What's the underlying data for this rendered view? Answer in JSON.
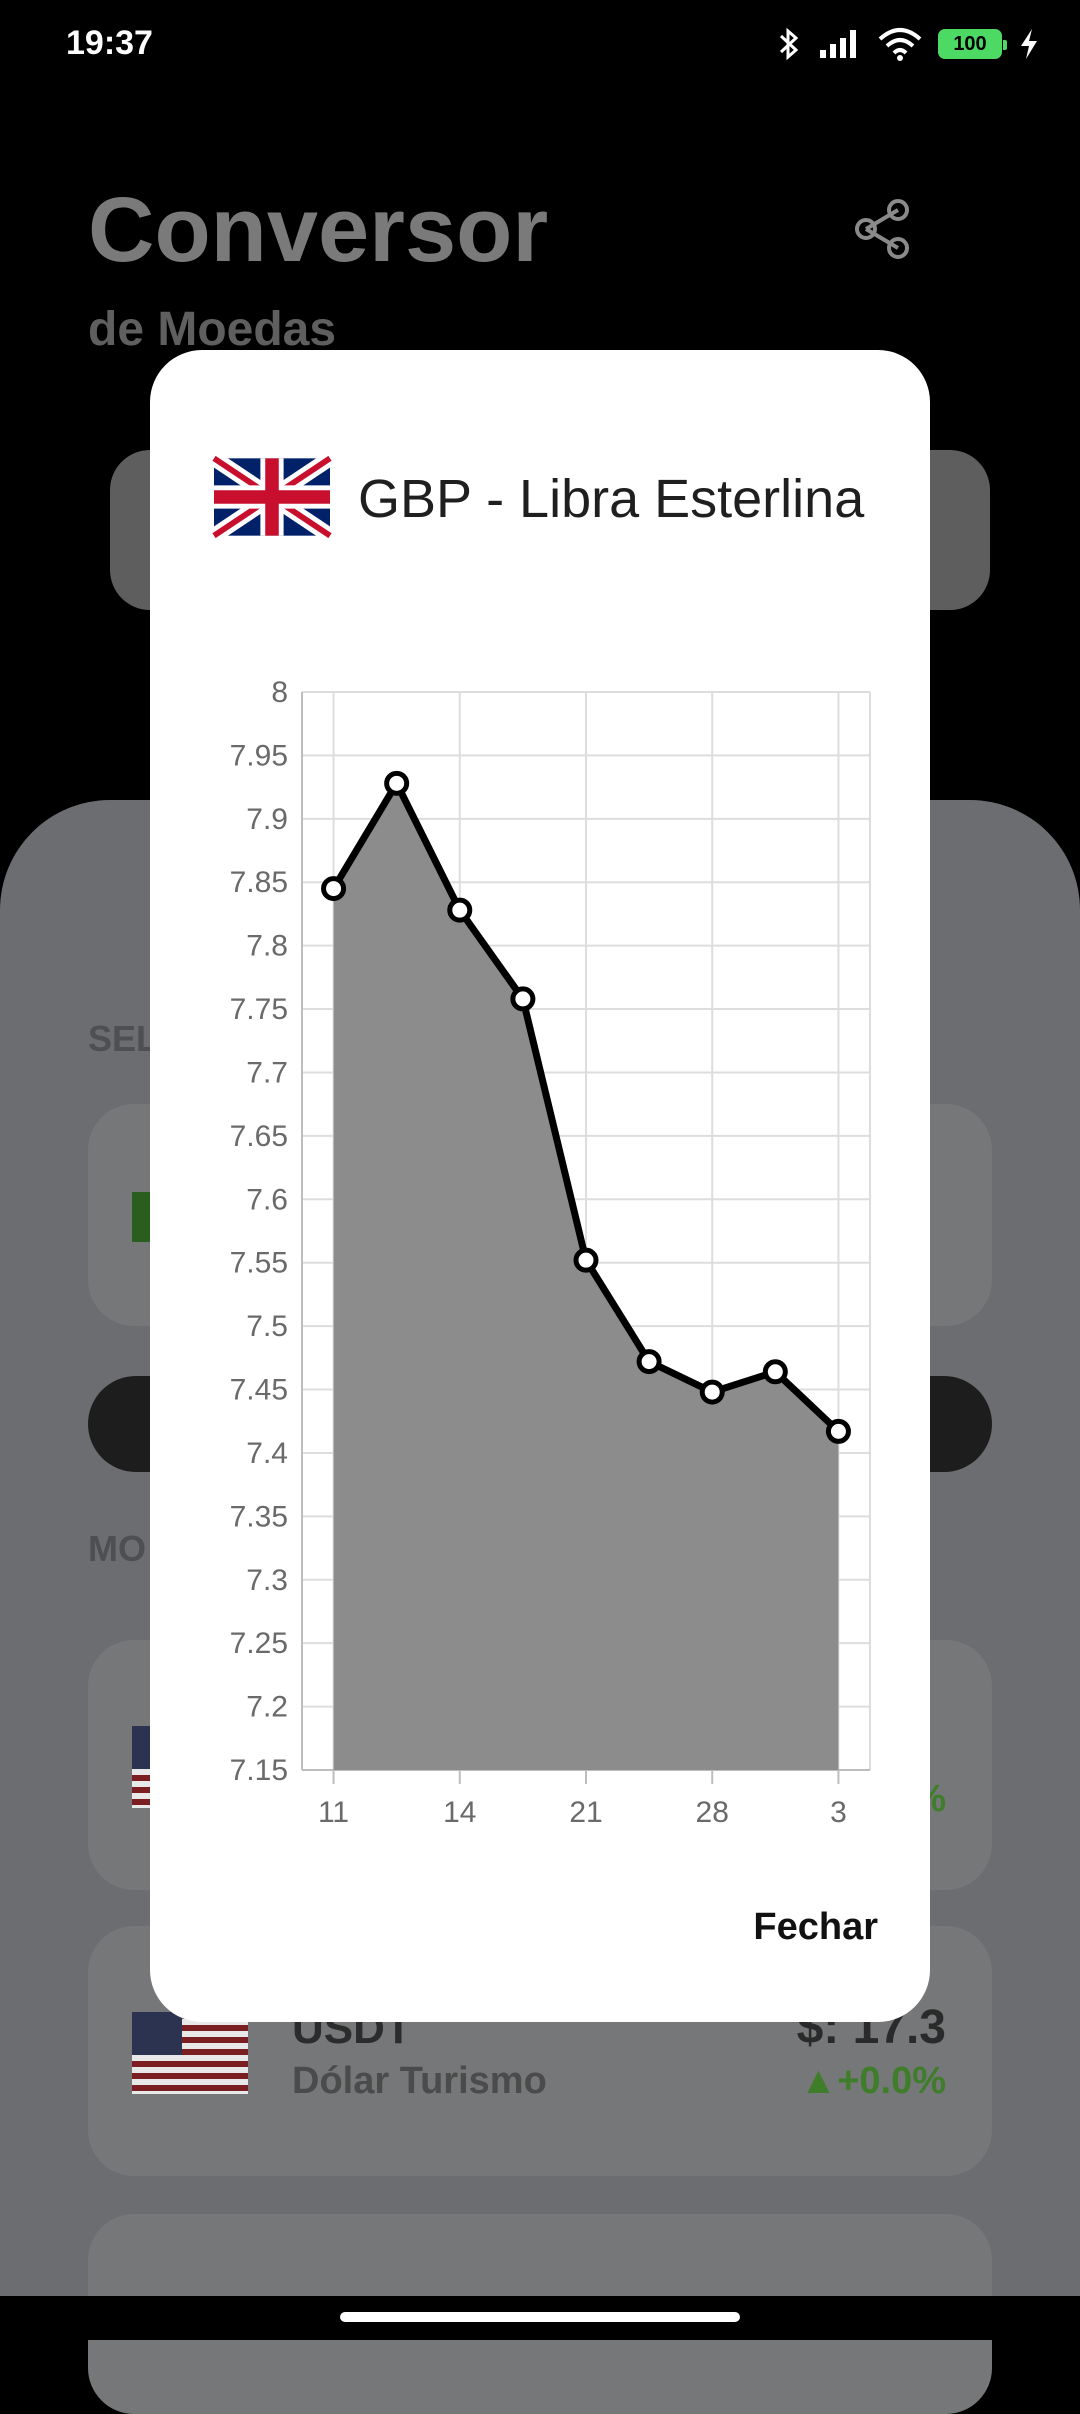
{
  "status_bar": {
    "time": "19:37",
    "battery": "100",
    "icons": [
      "bluetooth-icon",
      "signal-icon",
      "wifi-icon",
      "battery-icon",
      "charging-icon"
    ]
  },
  "background": {
    "title": "Conversor",
    "subtitle": "de Moedas",
    "section1_label": "SEL",
    "section2_label": "MO",
    "usdt_card": {
      "code": "USDT",
      "name": "Dólar Turismo",
      "value": "$: 17.3",
      "change": "▲+0.0%"
    },
    "partial_change": "%"
  },
  "dialog": {
    "title": "GBP - Libra Esterlina",
    "close_label": "Fechar"
  },
  "chart_data": {
    "type": "area",
    "x": [
      11,
      12.5,
      14,
      15.5,
      17,
      18.5,
      20,
      21.5,
      23
    ],
    "values": [
      7.845,
      7.928,
      7.828,
      7.758,
      7.552,
      7.472,
      7.448,
      7.464,
      7.417
    ],
    "x_ticks": [
      {
        "value": 11,
        "label": "11"
      },
      {
        "value": 14,
        "label": "14"
      },
      {
        "value": 17,
        "label": "21"
      },
      {
        "value": 20,
        "label": "28"
      },
      {
        "value": 23,
        "label": "3"
      }
    ],
    "y_ticks": [
      "8",
      "7.95",
      "7.9",
      "7.85",
      "7.8",
      "7.75",
      "7.7",
      "7.65",
      "7.6",
      "7.55",
      "7.5",
      "7.45",
      "7.4",
      "7.35",
      "7.3",
      "7.25",
      "7.2",
      "7.15"
    ],
    "ylim": [
      7.15,
      8
    ],
    "xlim": [
      10.25,
      23.75
    ],
    "grid": true,
    "line_color": "#000000",
    "fill_color": "#8c8c8c",
    "title": "",
    "xlabel": "",
    "ylabel": ""
  }
}
